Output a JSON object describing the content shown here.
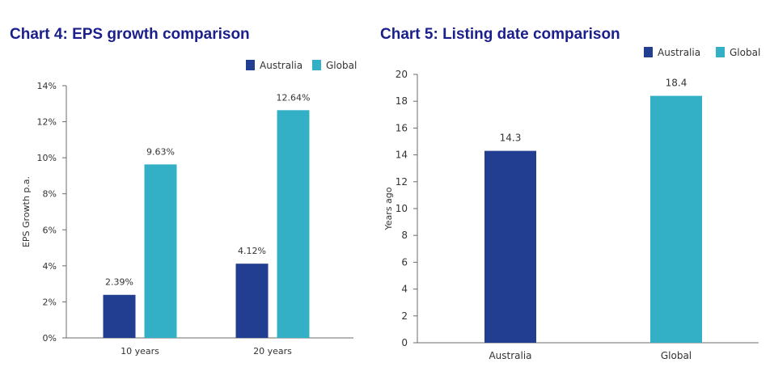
{
  "chart_data": [
    {
      "type": "bar",
      "title": "Chart 4: EPS growth comparison",
      "xlabel": "",
      "ylabel": "EPS Growth p.a.",
      "categories": [
        "10 years",
        "20 years"
      ],
      "series": [
        {
          "name": "Australia",
          "color": "#213e90",
          "values": [
            2.39,
            4.12
          ],
          "labels": [
            "2.39%",
            "4.12%"
          ]
        },
        {
          "name": "Global",
          "color": "#34b0c6",
          "values": [
            9.63,
            12.64
          ],
          "labels": [
            "9.63%",
            "12.64%"
          ]
        }
      ],
      "ylim": [
        0,
        14
      ],
      "yticks": [
        0,
        2,
        4,
        6,
        8,
        10,
        12,
        14
      ],
      "ytick_labels": [
        "0%",
        "2%",
        "4%",
        "6%",
        "8%",
        "10%",
        "12%",
        "14%"
      ],
      "legend": "top-right",
      "grid": false
    },
    {
      "type": "bar",
      "title": "Chart 5: Listing date comparison",
      "xlabel": "",
      "ylabel": "Years ago",
      "categories": [
        "Australia",
        "Global"
      ],
      "series": [
        {
          "name": "Australia",
          "color": "#213e90",
          "values": [
            14.3,
            null
          ],
          "labels": [
            "14.3",
            ""
          ]
        },
        {
          "name": "Global",
          "color": "#34b0c6",
          "values": [
            null,
            18.4
          ],
          "labels": [
            "",
            "18.4"
          ]
        }
      ],
      "ylim": [
        0,
        20
      ],
      "yticks": [
        0,
        2,
        4,
        6,
        8,
        10,
        12,
        14,
        16,
        18,
        20
      ],
      "ytick_labels": [
        "0",
        "2",
        "4",
        "6",
        "8",
        "10",
        "12",
        "14",
        "16",
        "18",
        "20"
      ],
      "legend": "top-right",
      "grid": false
    }
  ]
}
